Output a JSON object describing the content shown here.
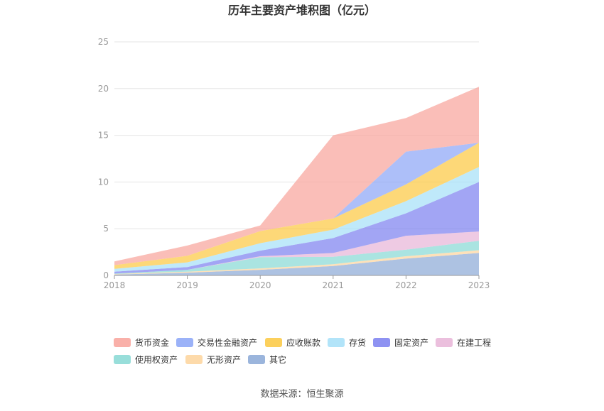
{
  "chart_data": {
    "type": "area",
    "stacked": true,
    "title": "历年主要资产堆积图（亿元）",
    "source": "数据来源：恒生聚源",
    "x": [
      "2018",
      "2019",
      "2020",
      "2021",
      "2022",
      "2023"
    ],
    "ylim": [
      0,
      25
    ],
    "yticks": [
      0,
      5,
      10,
      15,
      20,
      25
    ],
    "grid": true,
    "legend_position": "bottom",
    "series": [
      {
        "name": "其它",
        "color": "#8aa8d6",
        "values": [
          0.1,
          0.3,
          0.6,
          1.0,
          1.8,
          2.4
        ]
      },
      {
        "name": "无形资产",
        "color": "#fdd49b",
        "values": [
          0.05,
          0.1,
          0.15,
          0.2,
          0.25,
          0.3
        ]
      },
      {
        "name": "使用权资产",
        "color": "#86d8d4",
        "values": [
          0.05,
          0.2,
          1.2,
          0.8,
          0.7,
          1.0
        ]
      },
      {
        "name": "在建工程",
        "color": "#e7b4d7",
        "values": [
          0.0,
          0.0,
          0.1,
          0.4,
          1.5,
          1.0
        ]
      },
      {
        "name": "固定资产",
        "color": "#7a7ff0",
        "values": [
          0.2,
          0.3,
          0.6,
          1.6,
          2.4,
          5.3
        ]
      },
      {
        "name": "存货",
        "color": "#a4dff8",
        "values": [
          0.3,
          0.5,
          0.8,
          0.9,
          1.3,
          1.6
        ]
      },
      {
        "name": "应收账款",
        "color": "#fcc83f",
        "values": [
          0.4,
          0.7,
          1.3,
          1.2,
          1.8,
          2.6
        ]
      },
      {
        "name": "交易性金融资产",
        "color": "#8aa4f7",
        "values": [
          0.0,
          0.0,
          0.0,
          0.0,
          3.5,
          0.0
        ]
      },
      {
        "name": "货币资金",
        "color": "#f8a29a",
        "values": [
          0.4,
          1.1,
          0.6,
          8.9,
          3.6,
          6.0
        ]
      }
    ],
    "legend_order": [
      "货币资金",
      "交易性金融资产",
      "应收账款",
      "存货",
      "固定资产",
      "在建工程",
      "使用权资产",
      "无形资产",
      "其它"
    ]
  }
}
